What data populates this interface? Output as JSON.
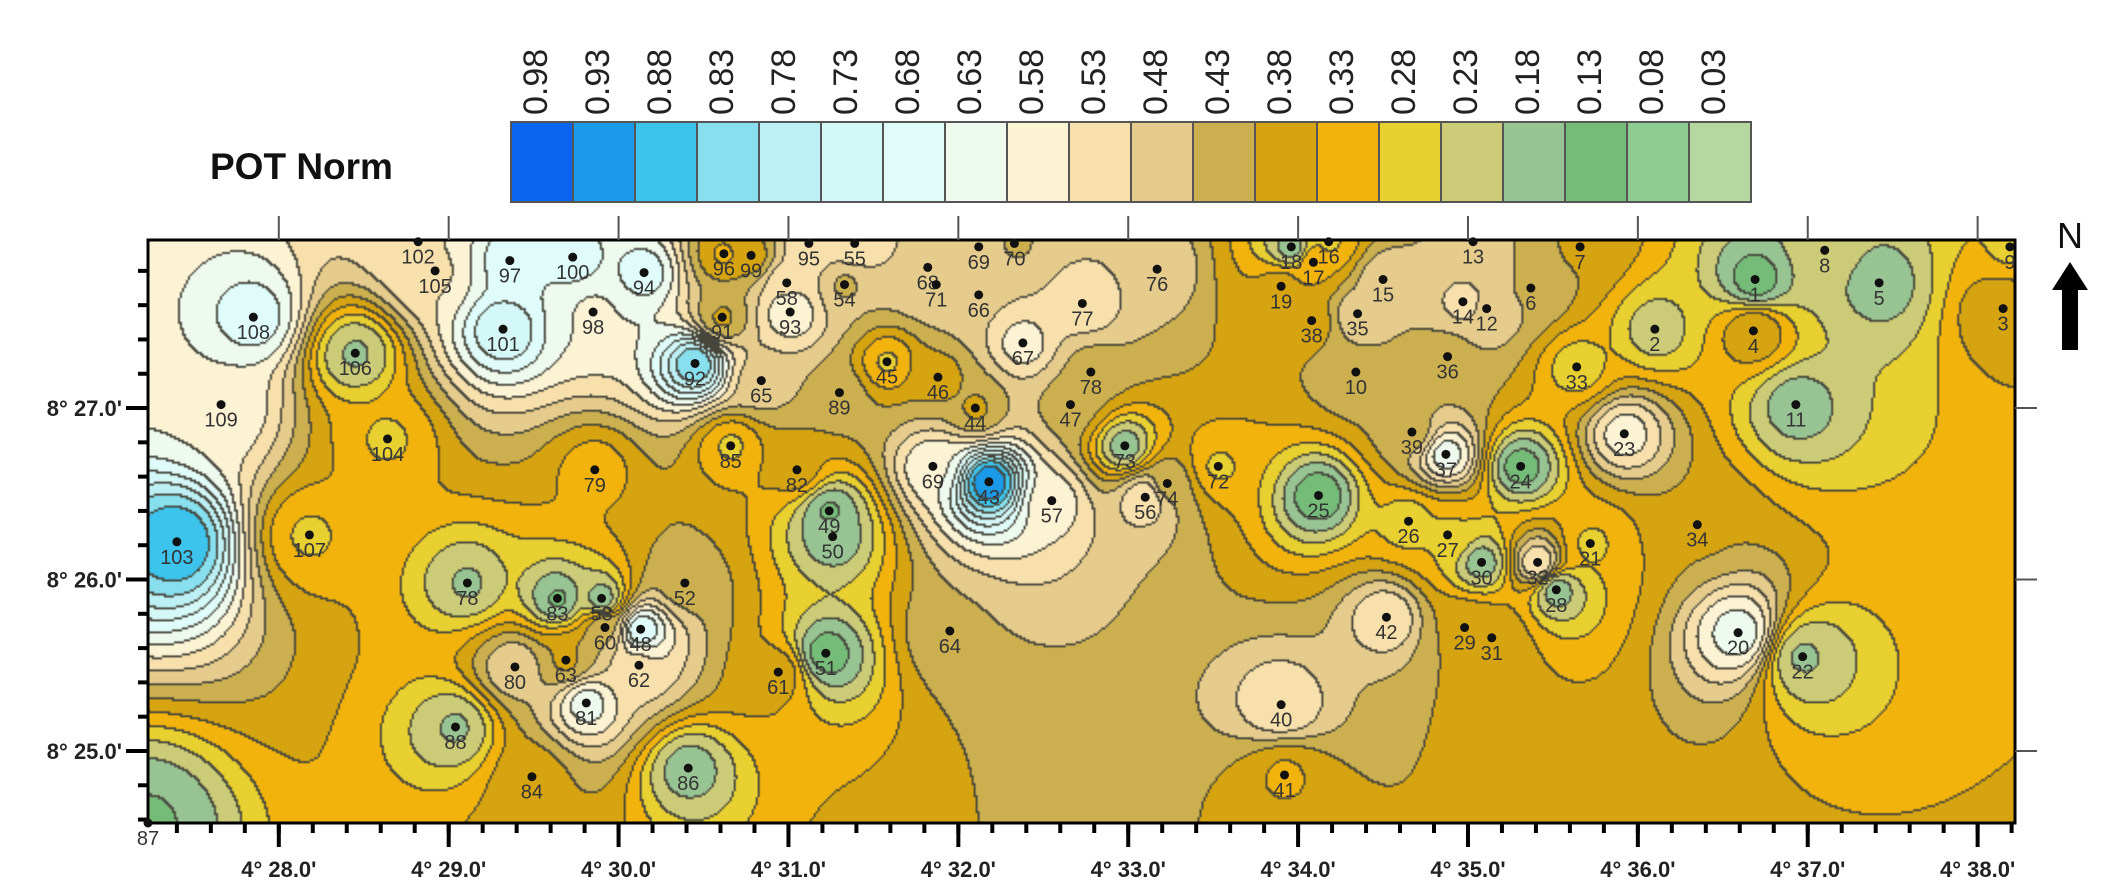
{
  "legend": {
    "title": "POT Norm",
    "levels": [
      "0.98",
      "0.93",
      "0.88",
      "0.83",
      "0.78",
      "0.73",
      "0.68",
      "0.63",
      "0.58",
      "0.53",
      "0.48",
      "0.43",
      "0.38",
      "0.33",
      "0.28",
      "0.23",
      "0.18",
      "0.13",
      "0.08",
      "0.03"
    ],
    "colors": [
      "#0a64f0",
      "#1a9ae8",
      "#3cc4ec",
      "#88e0ee",
      "#bdf0f4",
      "#d4f8f8",
      "#e0fcfa",
      "#eefaee",
      "#fcf2d4",
      "#f8e0ac",
      "#e6cc8c",
      "#ccb050",
      "#d6a410",
      "#f2b40c",
      "#e8d030",
      "#cccc78",
      "#98c494",
      "#74bc78",
      "#8ccc90",
      "#b4d8a0"
    ]
  },
  "map": {
    "xlim": [
      27.23,
      38.22
    ],
    "ylim": [
      24.58,
      27.98
    ],
    "x_ticks": [
      {
        "min": 28,
        "label": "4° 28.0'"
      },
      {
        "min": 29,
        "label": "4° 29.0'"
      },
      {
        "min": 30,
        "label": "4° 30.0'"
      },
      {
        "min": 31,
        "label": "4° 31.0'"
      },
      {
        "min": 32,
        "label": "4° 32.0'"
      },
      {
        "min": 33,
        "label": "4° 33.0'"
      },
      {
        "min": 34,
        "label": "4° 34.0'"
      },
      {
        "min": 35,
        "label": "4° 35.0'"
      },
      {
        "min": 36,
        "label": "4° 36.0'"
      },
      {
        "min": 37,
        "label": "4° 37.0'"
      },
      {
        "min": 38,
        "label": "4° 38.0'"
      }
    ],
    "y_ticks": [
      {
        "min": 27,
        "label": "8° 27.0'"
      },
      {
        "min": 26,
        "label": "8° 26.0'"
      },
      {
        "min": 25,
        "label": "8° 25.0'"
      }
    ],
    "north_label": "N",
    "stations": [
      {
        "id": "102",
        "lon": 28.82,
        "lat": 27.97,
        "v": 0.55
      },
      {
        "id": "105",
        "lon": 28.92,
        "lat": 27.8,
        "v": 0.55
      },
      {
        "id": "97",
        "lon": 29.36,
        "lat": 27.86,
        "v": 0.68
      },
      {
        "id": "100",
        "lon": 29.73,
        "lat": 27.88,
        "v": 0.68
      },
      {
        "id": "94",
        "lon": 30.15,
        "lat": 27.79,
        "v": 0.68
      },
      {
        "id": "108",
        "lon": 27.85,
        "lat": 27.53,
        "v": 0.68
      },
      {
        "id": "106",
        "lon": 28.45,
        "lat": 27.32,
        "v": 0.2
      },
      {
        "id": "101",
        "lon": 29.32,
        "lat": 27.46,
        "v": 0.75
      },
      {
        "id": "98",
        "lon": 29.85,
        "lat": 27.56,
        "v": 0.6
      },
      {
        "id": "92",
        "lon": 30.45,
        "lat": 27.26,
        "v": 0.85
      },
      {
        "id": "91",
        "lon": 30.61,
        "lat": 27.53,
        "v": 0.4
      },
      {
        "id": "96",
        "lon": 30.62,
        "lat": 27.9,
        "v": 0.35
      },
      {
        "id": "99",
        "lon": 30.78,
        "lat": 27.89,
        "v": 0.38
      },
      {
        "id": "95",
        "lon": 31.12,
        "lat": 27.96,
        "v": 0.55
      },
      {
        "id": "55",
        "lon": 31.39,
        "lat": 27.96,
        "v": 0.55
      },
      {
        "id": "58",
        "lon": 30.99,
        "lat": 27.73,
        "v": 0.55
      },
      {
        "id": "93",
        "lon": 31.01,
        "lat": 27.56,
        "v": 0.6
      },
      {
        "id": "54",
        "lon": 31.33,
        "lat": 27.72,
        "v": 0.45
      },
      {
        "id": "68",
        "lon": 31.82,
        "lat": 27.82,
        "v": 0.5
      },
      {
        "id": "71",
        "lon": 31.87,
        "lat": 27.72,
        "v": 0.5
      },
      {
        "id": "69",
        "lon": 32.12,
        "lat": 27.94,
        "v": 0.5
      },
      {
        "id": "70",
        "lon": 32.33,
        "lat": 27.96,
        "v": 0.45
      },
      {
        "id": "66",
        "lon": 32.12,
        "lat": 27.66,
        "v": 0.5
      },
      {
        "id": "76",
        "lon": 33.17,
        "lat": 27.81,
        "v": 0.5
      },
      {
        "id": "77",
        "lon": 32.73,
        "lat": 27.61,
        "v": 0.55
      },
      {
        "id": "67",
        "lon": 32.38,
        "lat": 27.38,
        "v": 0.58
      },
      {
        "id": "45",
        "lon": 31.58,
        "lat": 27.27,
        "v": 0.3
      },
      {
        "id": "46",
        "lon": 31.88,
        "lat": 27.18,
        "v": 0.38
      },
      {
        "id": "65",
        "lon": 30.84,
        "lat": 27.16,
        "v": 0.48
      },
      {
        "id": "89",
        "lon": 31.3,
        "lat": 27.09,
        "v": 0.43
      },
      {
        "id": "109",
        "lon": 27.66,
        "lat": 27.02,
        "v": 0.6
      },
      {
        "id": "104",
        "lon": 28.64,
        "lat": 26.82,
        "v": 0.3
      },
      {
        "id": "44",
        "lon": 32.1,
        "lat": 27.0,
        "v": 0.4
      },
      {
        "id": "78",
        "lon": 32.78,
        "lat": 27.21,
        "v": 0.43
      },
      {
        "id": "47",
        "lon": 32.66,
        "lat": 27.02,
        "v": 0.43
      },
      {
        "id": "85",
        "lon": 30.66,
        "lat": 26.78,
        "v": 0.3
      },
      {
        "id": "79",
        "lon": 29.86,
        "lat": 26.64,
        "v": 0.33
      },
      {
        "id": "82",
        "lon": 31.05,
        "lat": 26.64,
        "v": 0.38
      },
      {
        "id": "69",
        "lon": 31.85,
        "lat": 26.66,
        "v": 0.6
      },
      {
        "id": "43",
        "lon": 32.18,
        "lat": 26.57,
        "v": 0.95
      },
      {
        "id": "57",
        "lon": 32.55,
        "lat": 26.46,
        "v": 0.58
      },
      {
        "id": "73",
        "lon": 32.98,
        "lat": 26.78,
        "v": 0.18
      },
      {
        "id": "56",
        "lon": 33.1,
        "lat": 26.48,
        "v": 0.55
      },
      {
        "id": "74",
        "lon": 33.23,
        "lat": 26.56,
        "v": 0.43
      },
      {
        "id": "72",
        "lon": 33.53,
        "lat": 26.66,
        "v": 0.3
      },
      {
        "id": "103",
        "lon": 27.4,
        "lat": 26.22,
        "v": 0.9
      },
      {
        "id": "107",
        "lon": 28.18,
        "lat": 26.26,
        "v": 0.3
      },
      {
        "id": "49",
        "lon": 31.24,
        "lat": 26.4,
        "v": 0.15
      },
      {
        "id": "50",
        "lon": 31.26,
        "lat": 26.25,
        "v": 0.17
      },
      {
        "id": "78",
        "lon": 29.11,
        "lat": 25.98,
        "v": 0.2
      },
      {
        "id": "83",
        "lon": 29.64,
        "lat": 25.89,
        "v": 0.15
      },
      {
        "id": "53",
        "lon": 29.9,
        "lat": 25.89,
        "v": 0.18
      },
      {
        "id": "52",
        "lon": 30.39,
        "lat": 25.98,
        "v": 0.43
      },
      {
        "id": "60",
        "lon": 29.92,
        "lat": 25.72,
        "v": 0.45
      },
      {
        "id": "48",
        "lon": 30.13,
        "lat": 25.71,
        "v": 0.7
      },
      {
        "id": "63",
        "lon": 29.69,
        "lat": 25.53,
        "v": 0.4
      },
      {
        "id": "80",
        "lon": 29.39,
        "lat": 25.49,
        "v": 0.5
      },
      {
        "id": "62",
        "lon": 30.12,
        "lat": 25.5,
        "v": 0.55
      },
      {
        "id": "81",
        "lon": 29.81,
        "lat": 25.28,
        "v": 0.63
      },
      {
        "id": "64",
        "lon": 31.95,
        "lat": 25.7,
        "v": 0.45
      },
      {
        "id": "51",
        "lon": 31.22,
        "lat": 25.57,
        "v": 0.13
      },
      {
        "id": "61",
        "lon": 30.94,
        "lat": 25.46,
        "v": 0.38
      },
      {
        "id": "88",
        "lon": 29.04,
        "lat": 25.14,
        "v": 0.2
      },
      {
        "id": "84",
        "lon": 29.49,
        "lat": 24.85,
        "v": 0.38
      },
      {
        "id": "86",
        "lon": 30.41,
        "lat": 24.9,
        "v": 0.18
      },
      {
        "id": "87",
        "lon": 27.23,
        "lat": 24.58,
        "v": 0.15
      },
      {
        "id": "18",
        "lon": 33.96,
        "lat": 27.94,
        "v": 0.18
      },
      {
        "id": "16",
        "lon": 34.18,
        "lat": 27.97,
        "v": 0.3
      },
      {
        "id": "17",
        "lon": 34.09,
        "lat": 27.85,
        "v": 0.35
      },
      {
        "id": "19",
        "lon": 33.9,
        "lat": 27.71,
        "v": 0.38
      },
      {
        "id": "13",
        "lon": 35.03,
        "lat": 27.97,
        "v": 0.48
      },
      {
        "id": "7",
        "lon": 35.66,
        "lat": 27.94,
        "v": 0.4
      },
      {
        "id": "15",
        "lon": 34.5,
        "lat": 27.75,
        "v": 0.5
      },
      {
        "id": "6",
        "lon": 35.37,
        "lat": 27.7,
        "v": 0.45
      },
      {
        "id": "14",
        "lon": 34.97,
        "lat": 27.62,
        "v": 0.52
      },
      {
        "id": "12",
        "lon": 35.11,
        "lat": 27.58,
        "v": 0.5
      },
      {
        "id": "38",
        "lon": 34.08,
        "lat": 27.51,
        "v": 0.38
      },
      {
        "id": "35",
        "lon": 34.35,
        "lat": 27.55,
        "v": 0.5
      },
      {
        "id": "10",
        "lon": 34.34,
        "lat": 27.21,
        "v": 0.45
      },
      {
        "id": "36",
        "lon": 34.88,
        "lat": 27.3,
        "v": 0.43
      },
      {
        "id": "33",
        "lon": 35.64,
        "lat": 27.24,
        "v": 0.28
      },
      {
        "id": "2",
        "lon": 36.1,
        "lat": 27.46,
        "v": 0.23
      },
      {
        "id": "1",
        "lon": 36.69,
        "lat": 27.75,
        "v": 0.13
      },
      {
        "id": "4",
        "lon": 36.68,
        "lat": 27.45,
        "v": 0.4
      },
      {
        "id": "8",
        "lon": 37.1,
        "lat": 27.92,
        "v": 0.23
      },
      {
        "id": "5",
        "lon": 37.42,
        "lat": 27.73,
        "v": 0.18
      },
      {
        "id": "9",
        "lon": 38.19,
        "lat": 27.94,
        "v": 0.3
      },
      {
        "id": "3",
        "lon": 38.15,
        "lat": 27.58,
        "v": 0.4
      },
      {
        "id": "11",
        "lon": 36.93,
        "lat": 27.02,
        "v": 0.18
      },
      {
        "id": "39",
        "lon": 34.67,
        "lat": 26.86,
        "v": 0.43
      },
      {
        "id": "37",
        "lon": 34.87,
        "lat": 26.73,
        "v": 0.63
      },
      {
        "id": "24",
        "lon": 35.31,
        "lat": 26.66,
        "v": 0.13
      },
      {
        "id": "23",
        "lon": 35.92,
        "lat": 26.85,
        "v": 0.58
      },
      {
        "id": "25",
        "lon": 34.12,
        "lat": 26.49,
        "v": 0.12
      },
      {
        "id": "26",
        "lon": 34.65,
        "lat": 26.34,
        "v": 0.28
      },
      {
        "id": "27",
        "lon": 34.88,
        "lat": 26.26,
        "v": 0.3
      },
      {
        "id": "34",
        "lon": 36.35,
        "lat": 26.32,
        "v": 0.4
      },
      {
        "id": "30",
        "lon": 35.08,
        "lat": 26.1,
        "v": 0.18
      },
      {
        "id": "32",
        "lon": 35.41,
        "lat": 26.1,
        "v": 0.55
      },
      {
        "id": "21",
        "lon": 35.72,
        "lat": 26.21,
        "v": 0.3
      },
      {
        "id": "28",
        "lon": 35.52,
        "lat": 25.94,
        "v": 0.18
      },
      {
        "id": "42",
        "lon": 34.52,
        "lat": 25.78,
        "v": 0.55
      },
      {
        "id": "29",
        "lon": 34.98,
        "lat": 25.72,
        "v": 0.4
      },
      {
        "id": "31",
        "lon": 35.14,
        "lat": 25.66,
        "v": 0.4
      },
      {
        "id": "20",
        "lon": 36.59,
        "lat": 25.69,
        "v": 0.63
      },
      {
        "id": "22",
        "lon": 36.97,
        "lat": 25.55,
        "v": 0.2
      },
      {
        "id": "40",
        "lon": 33.9,
        "lat": 25.27,
        "v": 0.55
      },
      {
        "id": "41",
        "lon": 33.92,
        "lat": 24.86,
        "v": 0.35
      }
    ]
  }
}
